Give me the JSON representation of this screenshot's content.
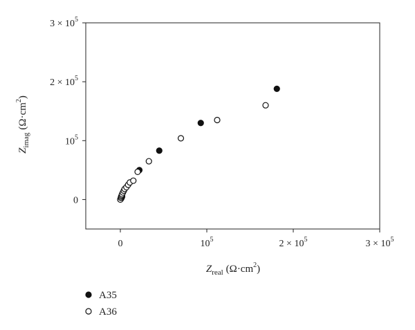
{
  "chart_data": {
    "type": "scatter",
    "title": "",
    "xlabel": {
      "base": "Z",
      "sub": "real",
      "unit": "(Ω·cm",
      "sup": "2",
      "close": ")"
    },
    "ylabel": {
      "base": "Z",
      "sub": "imag",
      "unit": "(Ω·cm",
      "sup": "2",
      "close": ")"
    },
    "xlim": [
      -40000,
      300000
    ],
    "ylim": [
      -50000,
      300000
    ],
    "x_ticks": [
      {
        "value": 0,
        "label": "0"
      },
      {
        "value": 100000,
        "label": "10",
        "sup": "5"
      },
      {
        "value": 200000,
        "label": "2 × 10",
        "sup": "5"
      },
      {
        "value": 300000,
        "label": "3 × 10",
        "sup": "5"
      }
    ],
    "y_ticks": [
      {
        "value": 0,
        "label": "0"
      },
      {
        "value": 100000,
        "label": "10",
        "sup": "5"
      },
      {
        "value": 200000,
        "label": "2 × 10",
        "sup": "5"
      },
      {
        "value": 300000,
        "label": "3 × 10",
        "sup": "5"
      }
    ],
    "grid": false,
    "legend_position": "bottom-left",
    "series": [
      {
        "name": "A35",
        "marker": "filled-circle",
        "color": "#111111",
        "points": [
          [
            0,
            0
          ],
          [
            500,
            1000
          ],
          [
            1000,
            2000
          ],
          [
            1500,
            3500
          ],
          [
            2000,
            5000
          ],
          [
            22000,
            50000
          ],
          [
            45000,
            83000
          ],
          [
            93000,
            130000
          ],
          [
            181000,
            188000
          ]
        ]
      },
      {
        "name": "A36",
        "marker": "open-circle",
        "color": "#111111",
        "points": [
          [
            0,
            0
          ],
          [
            600,
            3000
          ],
          [
            1000,
            5000
          ],
          [
            1500,
            7000
          ],
          [
            2000,
            9000
          ],
          [
            3000,
            12000
          ],
          [
            4000,
            15000
          ],
          [
            5000,
            18000
          ],
          [
            7000,
            21000
          ],
          [
            9000,
            25000
          ],
          [
            11000,
            29000
          ],
          [
            15000,
            32000
          ],
          [
            20000,
            47000
          ],
          [
            33000,
            65000
          ],
          [
            70000,
            104000
          ],
          [
            112000,
            135000
          ],
          [
            168000,
            160000
          ]
        ]
      }
    ]
  }
}
